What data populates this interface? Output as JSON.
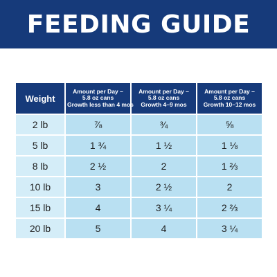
{
  "banner": {
    "title": "FEEDING GUIDE",
    "background": "#163a7a"
  },
  "table": {
    "header_color": "#163a7a",
    "cell_color": "#b9e0f2",
    "columns": [
      {
        "lines": [
          "Weight"
        ]
      },
      {
        "lines": [
          "Amount per Day –",
          "5.8 oz cans",
          "Growth less than 4 mos"
        ]
      },
      {
        "lines": [
          "Amount per Day –",
          "5.8 oz cans",
          "Growth 4–9 mos"
        ]
      },
      {
        "lines": [
          "Amount per Day –",
          "5.8 oz cans",
          "Growth 10–12 mos"
        ]
      }
    ],
    "rows": [
      {
        "weight": "2 lb",
        "amounts": [
          "⅞",
          "¾",
          "⅝"
        ]
      },
      {
        "weight": "5 lb",
        "amounts": [
          "1 ¾",
          "1 ½",
          "1 ⅛"
        ]
      },
      {
        "weight": "8 lb",
        "amounts": [
          "2 ½",
          "2",
          "1 ⅔"
        ]
      },
      {
        "weight": "10 lb",
        "amounts": [
          "3",
          "2 ½",
          "2"
        ]
      },
      {
        "weight": "15 lb",
        "amounts": [
          "4",
          "3 ¼",
          "2 ⅔"
        ]
      },
      {
        "weight": "20 lb",
        "amounts": [
          "5",
          "4",
          "3 ¼"
        ]
      }
    ]
  }
}
